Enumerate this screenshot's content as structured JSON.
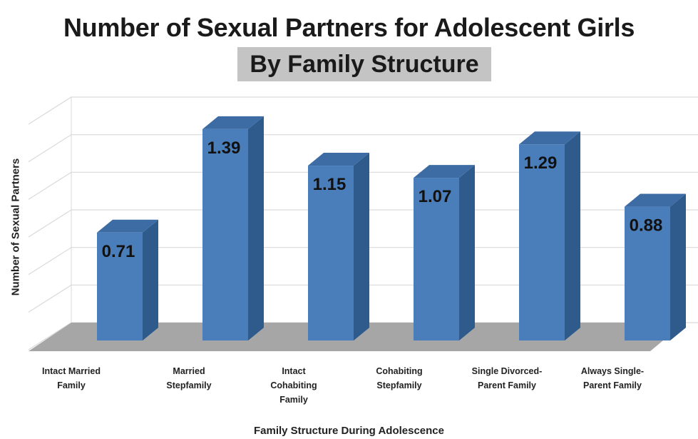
{
  "chart_data": {
    "type": "bar",
    "title": "Number of Sexual Partners for Adolescent Girls",
    "subtitle": "By Family Structure",
    "xlabel": "Family Structure During Adolescence",
    "ylabel": "Number of Sexual Partners",
    "categories": [
      "Intact Married\nFamily",
      "Married\nStepfamily",
      "Intact\nCohabiting\nFamily",
      "Cohabiting\nStepfamily",
      "Single Divorced-\nParent Family",
      "Always Single-\nParent Family"
    ],
    "values": [
      0.71,
      1.39,
      1.15,
      1.07,
      1.29,
      0.88
    ],
    "data_labels": [
      "0.71",
      "1.39",
      "1.15",
      "1.07",
      "1.29",
      "0.88"
    ],
    "ylim": [
      0,
      1.6
    ],
    "grid": true,
    "legend": "none",
    "colors": {
      "bar_front": "#4a7ebb",
      "bar_side": "#2e5a8c",
      "bar_top": "#3d6ca5",
      "floor": "#a6a6a6",
      "grid": "#d9d9d9"
    }
  }
}
